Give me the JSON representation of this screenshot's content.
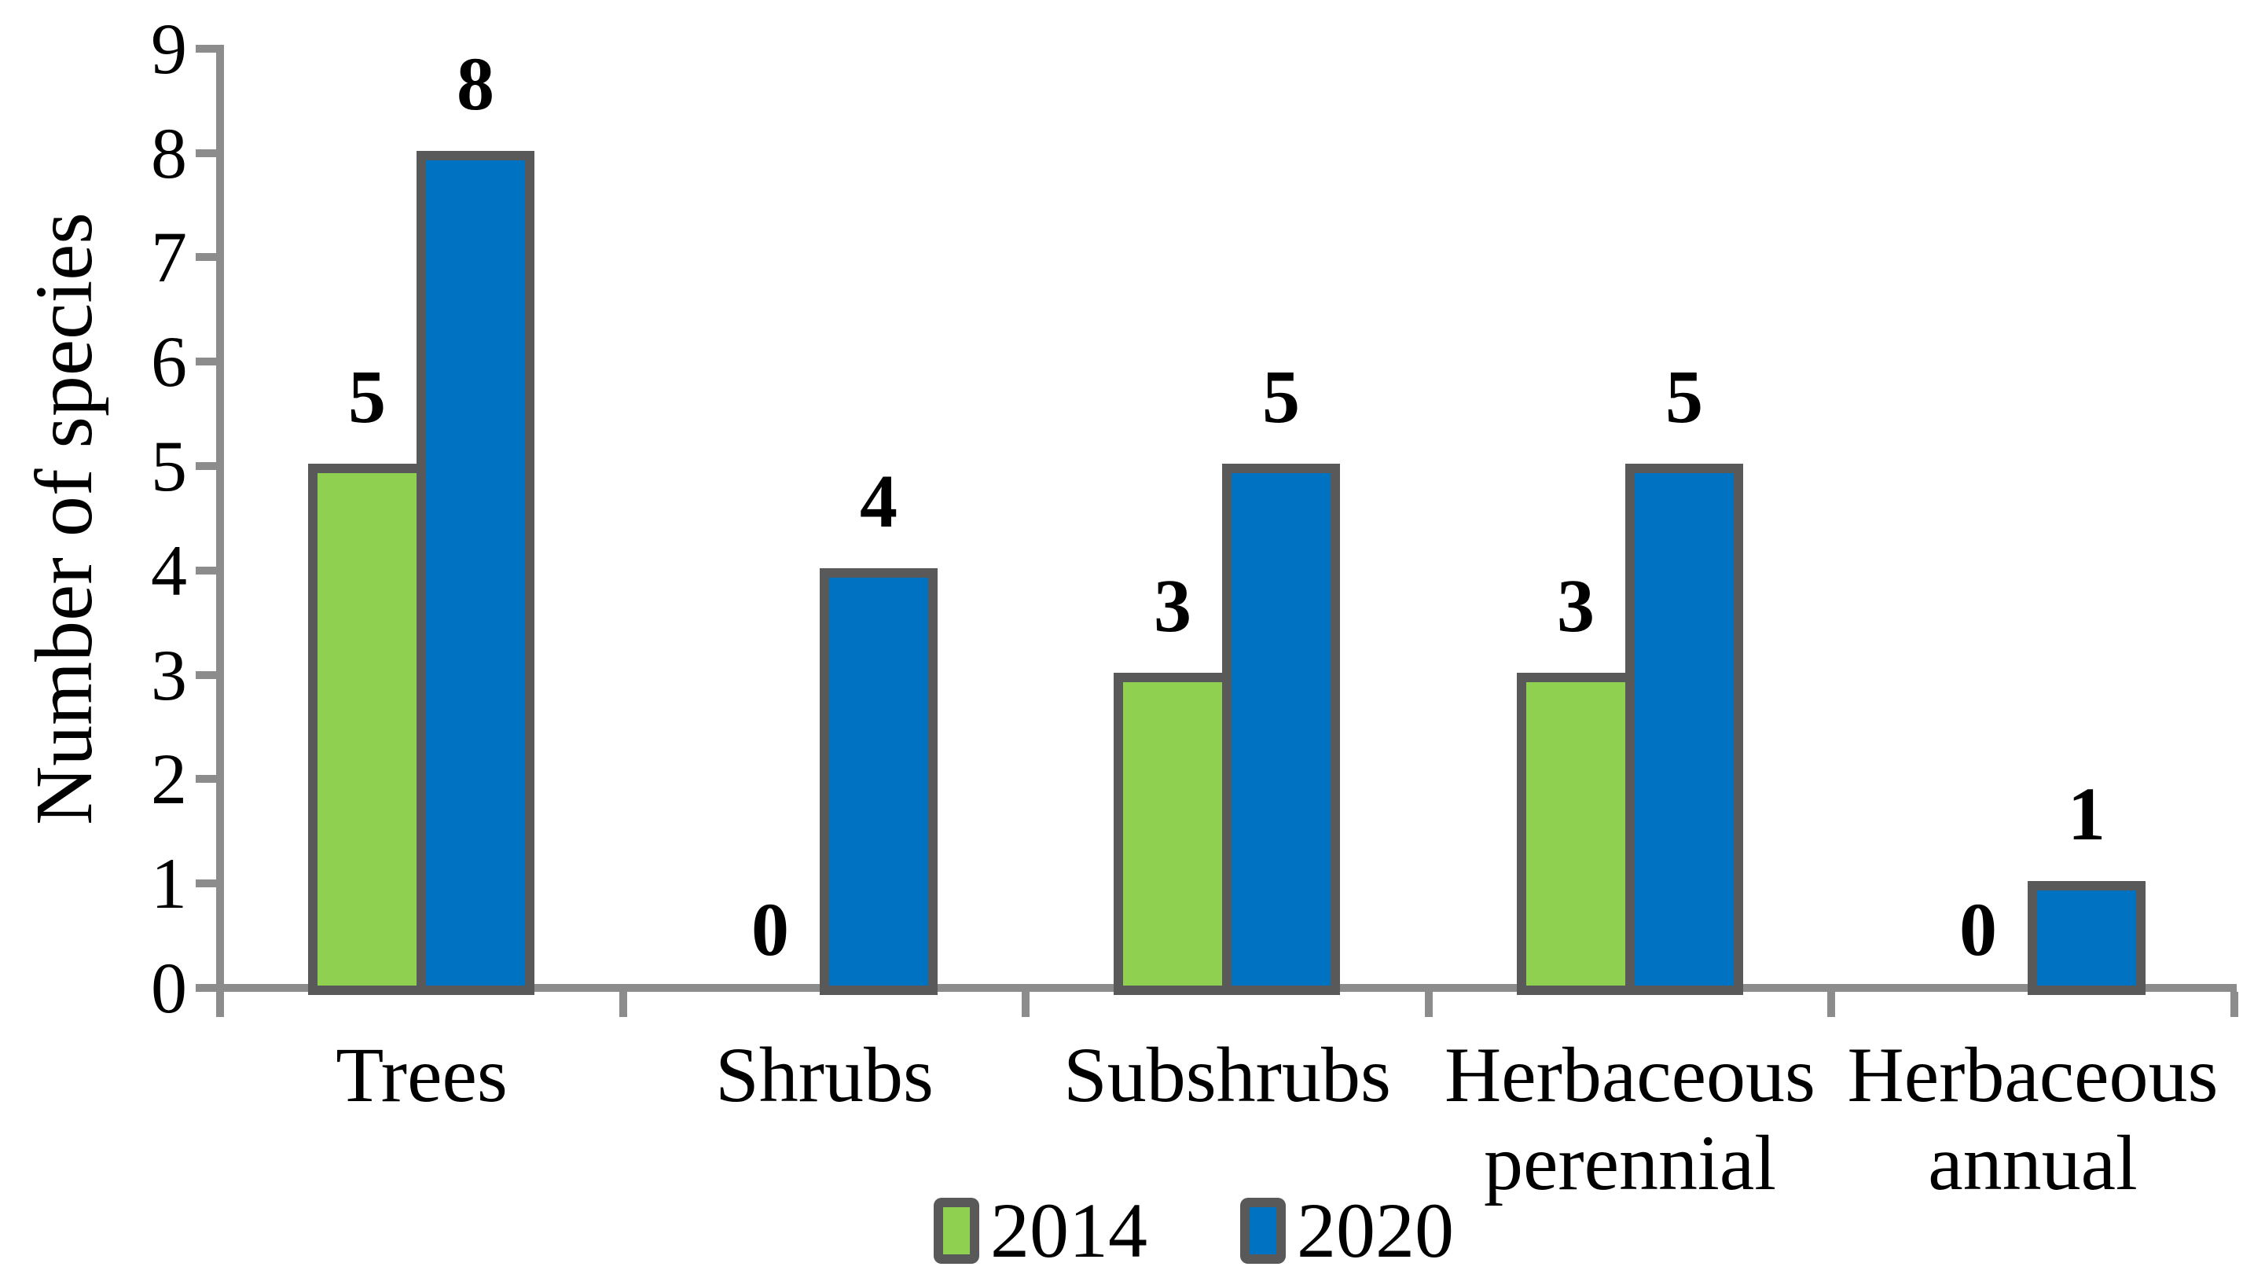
{
  "chart_data": {
    "type": "bar",
    "title": "",
    "ylabel": "Number of species",
    "xlabel": "",
    "categories": [
      "Trees",
      "Shrubs",
      "Subshrubs",
      "Herbaceous perennial",
      "Herbaceous annual"
    ],
    "series": [
      {
        "name": "2014",
        "color": "#90D051",
        "values": [
          5,
          0,
          3,
          3,
          0
        ]
      },
      {
        "name": "2020",
        "color": "#0072C2",
        "values": [
          8,
          4,
          5,
          5,
          1
        ]
      }
    ],
    "data_labels": [
      [
        "5",
        "0",
        "3",
        "3",
        "0"
      ],
      [
        "8",
        "4",
        "5",
        "5",
        "1"
      ]
    ],
    "ylim": [
      0,
      9
    ],
    "yticks": [
      "0",
      "1",
      "2",
      "3",
      "4",
      "5",
      "6",
      "7",
      "8",
      "9"
    ],
    "grid": false,
    "legend_position": "bottom",
    "colors": {
      "bar_border": "#595959",
      "axis": "#8c8c8c",
      "text": "#000000",
      "background": "#ffffff"
    }
  }
}
